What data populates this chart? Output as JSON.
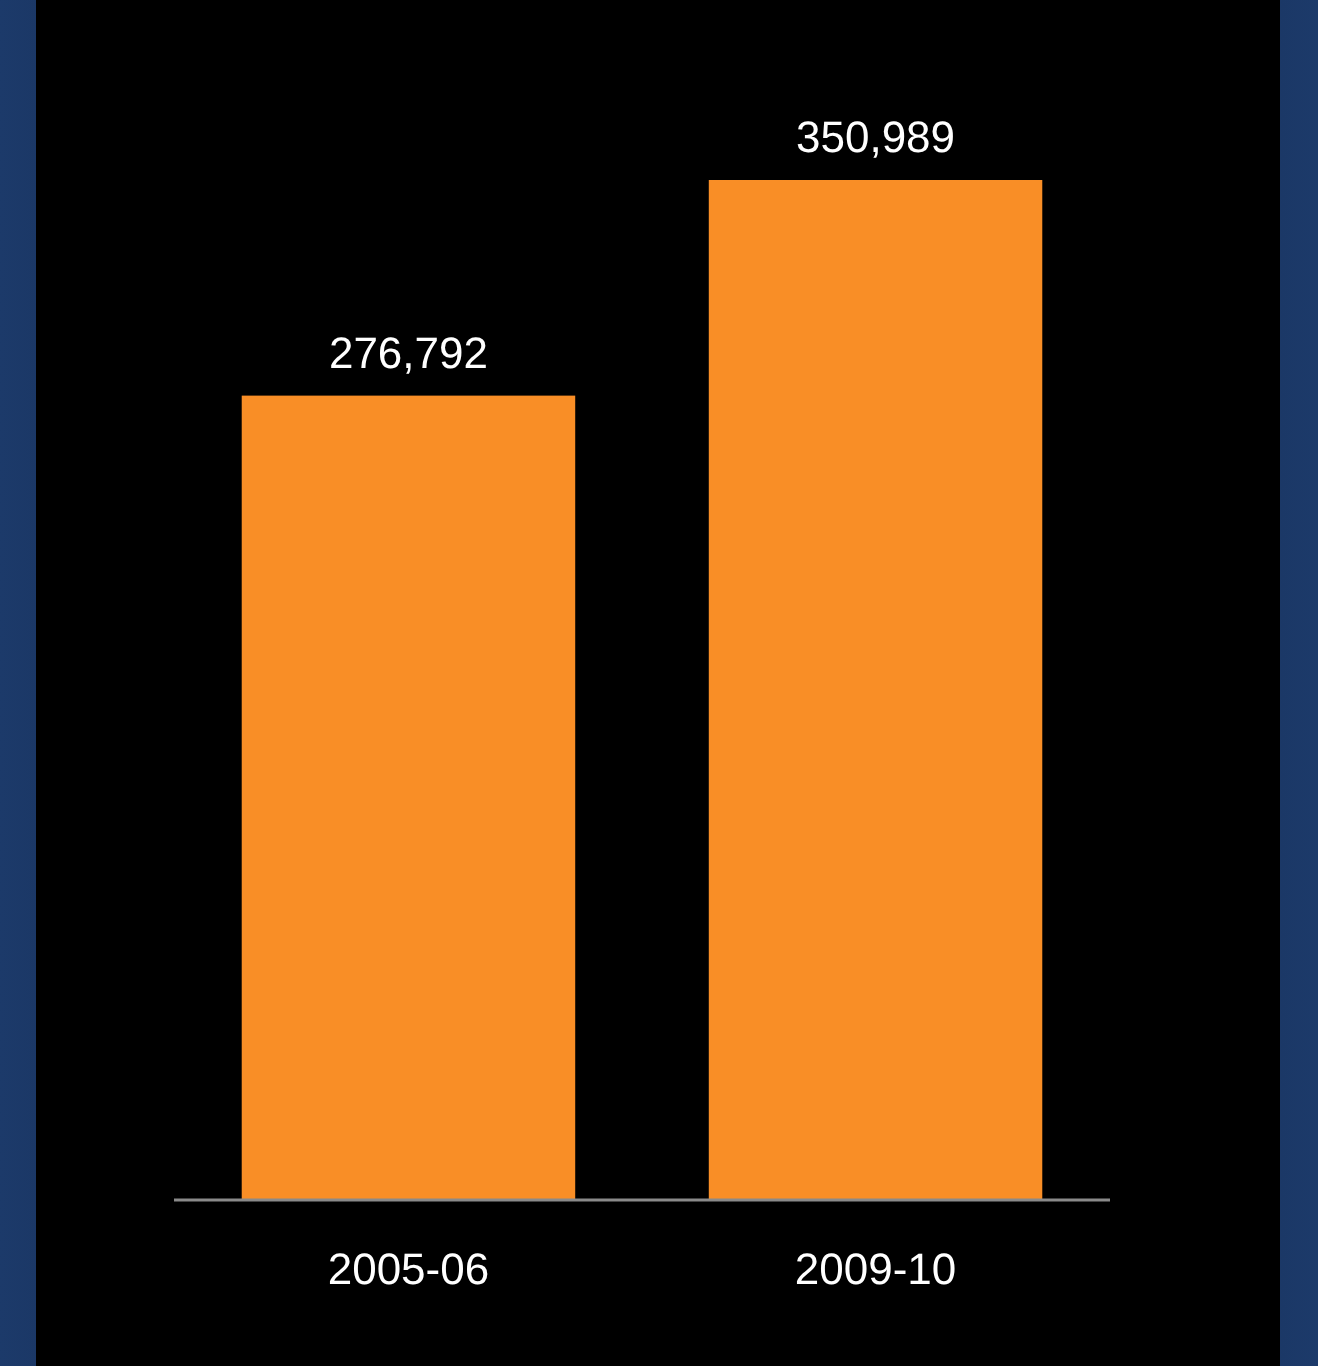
{
  "chart_data": {
    "type": "bar",
    "categories": [
      "2005-06",
      "2009-10"
    ],
    "values": [
      276792,
      350989
    ],
    "value_labels": [
      "276,792",
      "350,989"
    ],
    "color": "#f98e26"
  }
}
